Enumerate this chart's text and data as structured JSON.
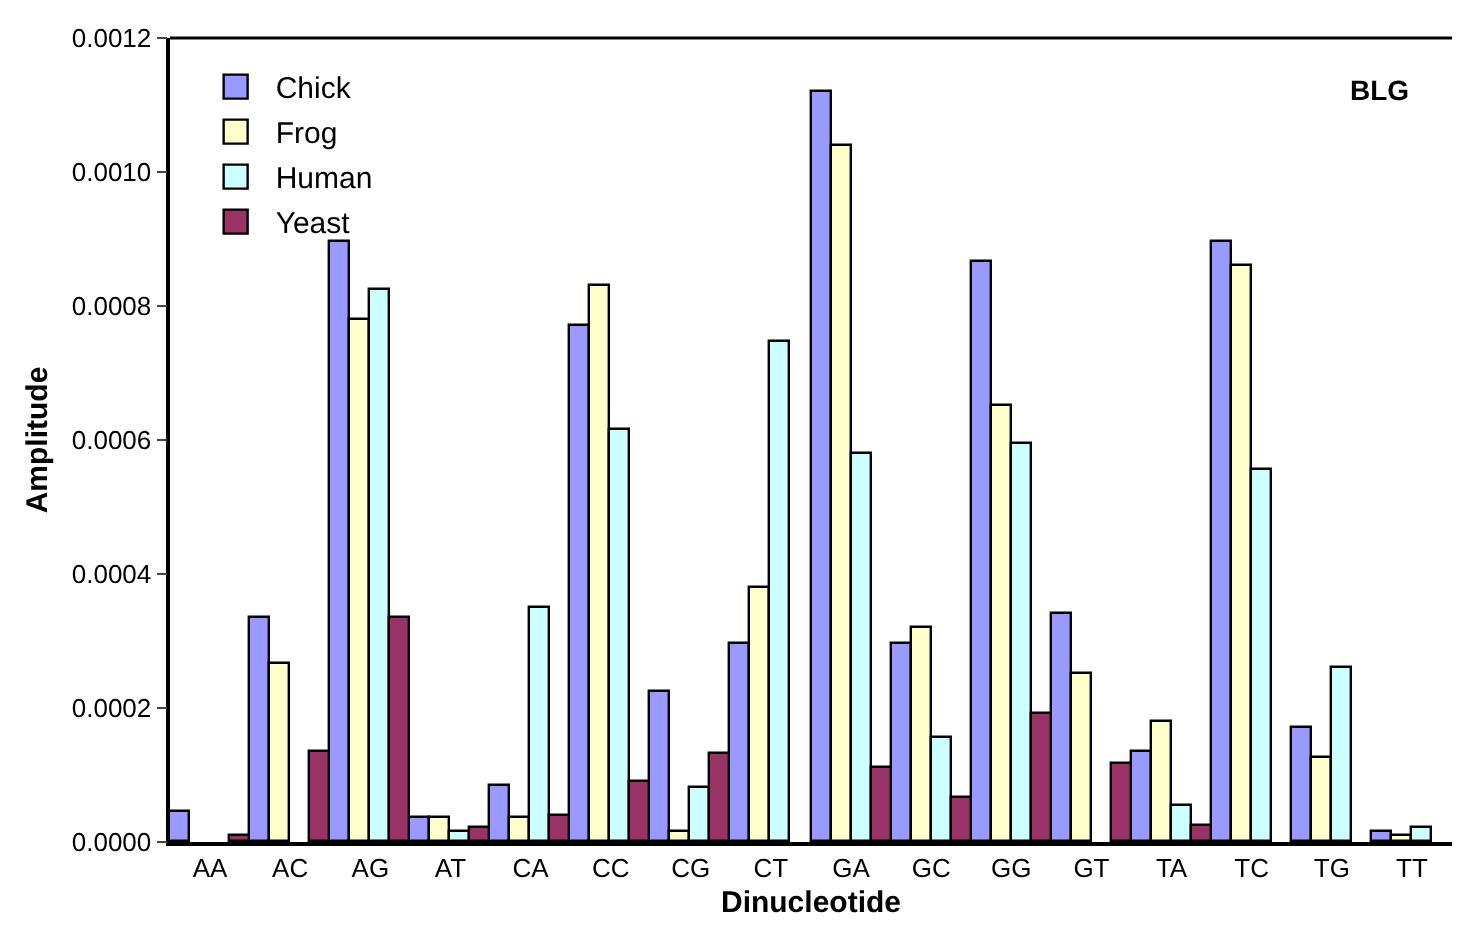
{
  "chart_data": {
    "type": "bar",
    "xlabel": "Dinucleotide",
    "ylabel": "Amplitude",
    "annotations": [
      "BLG"
    ],
    "categories": [
      "AA",
      "AC",
      "AG",
      "AT",
      "CA",
      "CC",
      "CG",
      "CT",
      "GA",
      "GC",
      "GG",
      "GT",
      "TA",
      "TC",
      "TG",
      "TT"
    ],
    "series": [
      {
        "name": "Chick",
        "color": "#9999ff",
        "values": [
          4.5e-05,
          0.000335,
          0.000895,
          3.5e-05,
          8.5e-05,
          0.00077,
          0.000225,
          0.000295,
          0.00112,
          0.000295,
          0.000865,
          0.00034,
          0.000135,
          0.000895,
          0.00017,
          1.5e-05
        ]
      },
      {
        "name": "Frog",
        "color": "#ffffcc",
        "values": [
          null,
          0.000265,
          0.00078,
          3.5e-05,
          3.5e-05,
          0.00083,
          1.5e-05,
          0.00038,
          0.00104,
          0.00032,
          0.00065,
          0.00025,
          0.00018,
          0.00086,
          0.000125,
          1e-05
        ]
      },
      {
        "name": "Human",
        "color": "#ccffff",
        "values": [
          null,
          null,
          0.000825,
          1.5e-05,
          0.00035,
          0.000615,
          8e-05,
          0.000745,
          0.00058,
          0.000155,
          0.000595,
          null,
          5.5e-05,
          0.000555,
          0.00026,
          2e-05
        ]
      },
      {
        "name": "Yeast",
        "color": "#993366",
        "values": [
          1e-05,
          0.000135,
          0.000335,
          2e-05,
          4e-05,
          9e-05,
          0.00013,
          null,
          0.00011,
          6.5e-05,
          0.00019,
          0.000115,
          2.5e-05,
          null,
          null,
          null
        ]
      }
    ],
    "ylim": [
      0,
      0.0012
    ],
    "yticks": [
      {
        "value": 0,
        "label": "0.0000"
      },
      {
        "value": 0.0002,
        "label": "0.0002"
      },
      {
        "value": 0.0004,
        "label": "0.0004"
      },
      {
        "value": 0.0006,
        "label": "0.0006"
      },
      {
        "value": 0.0008,
        "label": "0.0008"
      },
      {
        "value": 0.001,
        "label": "0.0010"
      },
      {
        "value": 0.0012,
        "label": "0.0012"
      }
    ],
    "grid": false,
    "legend": "top left"
  }
}
